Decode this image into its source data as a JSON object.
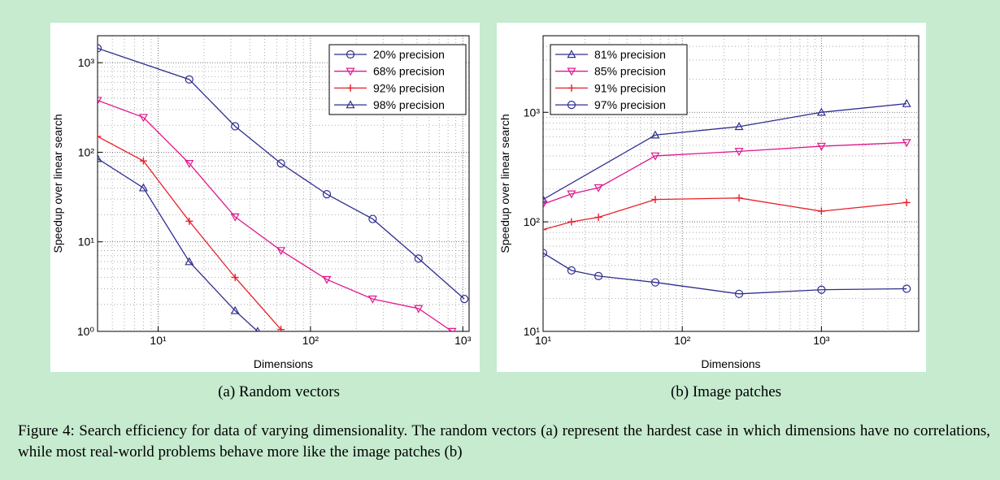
{
  "chart_data": [
    {
      "type": "line",
      "xlog": true,
      "ylog": true,
      "grid": true,
      "legend": "upper right",
      "caption": "(a) Random vectors",
      "xlabel": "Dimensions",
      "ylabel": "Speedup over linear search",
      "xlim": [
        4,
        1100
      ],
      "ylim": [
        1,
        2000
      ],
      "xticks": [
        {
          "value": 10,
          "label": "10¹"
        },
        {
          "value": 100,
          "label": "10²"
        },
        {
          "value": 1000,
          "label": "10³"
        }
      ],
      "yticks": [
        {
          "value": 1,
          "label": "10⁰"
        },
        {
          "value": 10,
          "label": "10¹"
        },
        {
          "value": 100,
          "label": "10²"
        },
        {
          "value": 1000,
          "label": "10³"
        }
      ],
      "series": [
        {
          "name": "20% precision",
          "color": "#2e2e8e",
          "marker": "circle",
          "x": [
            4,
            16,
            32,
            64,
            128,
            256,
            512,
            1024
          ],
          "values": [
            1450,
            650,
            195,
            75,
            34,
            18,
            6.5,
            2.3
          ]
        },
        {
          "name": "68% precision",
          "color": "#e0198c",
          "marker": "triangle-down",
          "x": [
            4,
            8,
            16,
            32,
            64,
            128,
            256,
            512,
            850
          ],
          "values": [
            380,
            245,
            75,
            19,
            8,
            3.8,
            2.3,
            1.8,
            1
          ]
        },
        {
          "name": "92% precision",
          "color": "#e8202a",
          "marker": "plus",
          "x": [
            4,
            8,
            16,
            32,
            64
          ],
          "values": [
            150,
            80,
            17,
            4,
            1.05
          ]
        },
        {
          "name": "98% precision",
          "color": "#2e2e8e",
          "marker": "triangle-up",
          "x": [
            4,
            8,
            16,
            32,
            45
          ],
          "values": [
            85,
            40,
            6,
            1.7,
            1
          ]
        }
      ]
    },
    {
      "type": "line",
      "xlog": true,
      "ylog": true,
      "grid": true,
      "legend": "upper left",
      "caption": "(b) Image patches",
      "xlabel": "Dimensions",
      "ylabel": "Speedup over linear search",
      "xlim": [
        10,
        5000
      ],
      "ylim": [
        10,
        5000
      ],
      "xticks": [
        {
          "value": 10,
          "label": "10¹"
        },
        {
          "value": 100,
          "label": "10²"
        },
        {
          "value": 1000,
          "label": "10³"
        }
      ],
      "yticks": [
        {
          "value": 10,
          "label": "10¹"
        },
        {
          "value": 100,
          "label": "10²"
        },
        {
          "value": 1000,
          "label": "10³"
        }
      ],
      "series": [
        {
          "name": "81% precision",
          "color": "#2e2e8e",
          "marker": "triangle-up",
          "x": [
            10,
            64,
            256,
            1000,
            4096
          ],
          "values": [
            160,
            620,
            740,
            1000,
            1200
          ]
        },
        {
          "name": "85% precision",
          "color": "#e0198c",
          "marker": "triangle-down",
          "x": [
            10,
            16,
            25,
            64,
            256,
            1000,
            4096
          ],
          "values": [
            145,
            180,
            205,
            400,
            440,
            490,
            530
          ]
        },
        {
          "name": "91% precision",
          "color": "#e8202a",
          "marker": "plus",
          "x": [
            10,
            16,
            25,
            64,
            256,
            1000,
            4096
          ],
          "values": [
            85,
            100,
            110,
            160,
            165,
            125,
            150
          ]
        },
        {
          "name": "97% precision",
          "color": "#2e2e8e",
          "marker": "circle",
          "x": [
            10,
            16,
            25,
            64,
            256,
            1000,
            4096
          ],
          "values": [
            52,
            36,
            32,
            28,
            22,
            24,
            24.5
          ]
        }
      ]
    }
  ],
  "figure_caption": "Figure 4: Search efficiency for data of varying dimensionality. The random vectors (a) represent the hardest case in which dimensions have no correlations, while most real-world problems behave more like the image patches (b)"
}
